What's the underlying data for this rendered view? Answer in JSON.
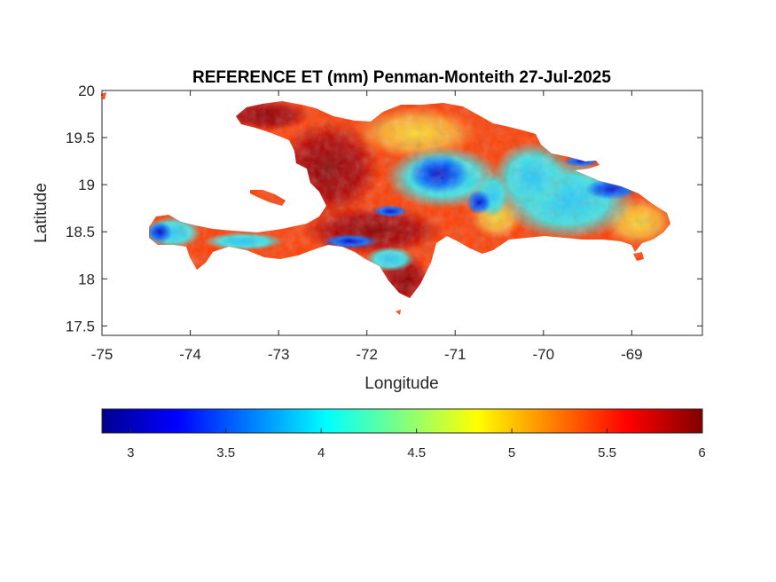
{
  "map": {
    "title": "REFERENCE ET (mm) Penman-Monteith 27-Jul-2025",
    "xlabel": "Longitude",
    "ylabel": "Latitude",
    "x_range": [
      -75,
      -68.2
    ],
    "y_range": [
      17.4,
      20
    ],
    "x_ticks": [
      "-75",
      "-74",
      "-73",
      "-72",
      "-71",
      "-70",
      "-69"
    ],
    "y_ticks": [
      "20",
      "19.5",
      "19",
      "18.5",
      "18",
      "17.5"
    ],
    "x_tick_values": [
      -75,
      -74,
      -73,
      -72,
      -71,
      -70,
      -69
    ],
    "y_tick_values": [
      20,
      19.5,
      19,
      18.5,
      18,
      17.5
    ],
    "grid": false,
    "colormap": "jet",
    "region": "Hispaniola (Haiti and Dominican Republic)"
  },
  "colorbar": {
    "range": [
      2.85,
      6
    ],
    "placement": "bottom",
    "ticks": [
      "3",
      "3.5",
      "4",
      "4.5",
      "5",
      "5.5",
      "6"
    ],
    "tick_values": [
      3,
      3.5,
      4,
      4.5,
      5,
      5.5,
      6
    ]
  }
}
